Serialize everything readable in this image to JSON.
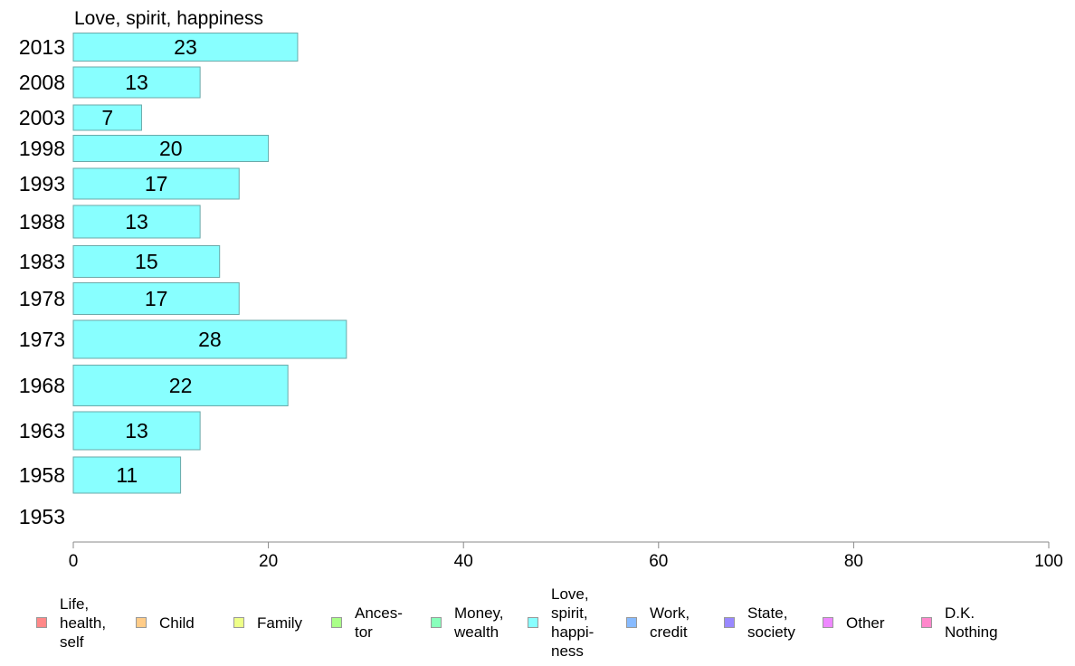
{
  "chart_data": {
    "type": "bar",
    "orientation": "horizontal",
    "title": "Love, spirit, happiness",
    "categories": [
      "2013",
      "2008",
      "2003",
      "1998",
      "1993",
      "1988",
      "1983",
      "1978",
      "1973",
      "1968",
      "1963",
      "1958",
      "1953"
    ],
    "series": [
      {
        "name": "Love, spirit, happiness",
        "values": [
          23,
          13,
          7,
          20,
          17,
          13,
          15,
          17,
          28,
          22,
          13,
          11,
          null
        ],
        "data_labels": [
          "23",
          "13",
          "7",
          "20",
          "17",
          "13",
          "15",
          "17",
          "28",
          "22",
          "13",
          "11",
          ""
        ],
        "color": "#88ffff"
      }
    ],
    "xlim": [
      0,
      100
    ],
    "xticks": [
      "0",
      "20",
      "40",
      "60",
      "80",
      "100"
    ],
    "xlabel": "",
    "ylabel": "",
    "grid": false,
    "legend_position": "bottom",
    "legend": [
      {
        "label": "Life,\nhealth,\nself",
        "color": "#ff8888"
      },
      {
        "label": "Child",
        "color": "#ffcc88"
      },
      {
        "label": "Family",
        "color": "#eeff88"
      },
      {
        "label": "Ances-\ntor",
        "color": "#aaff88"
      },
      {
        "label": "Money,\nwealth",
        "color": "#88ffbb"
      },
      {
        "label": "Love,\nspirit,\nhappi-\nness",
        "color": "#88ffff"
      },
      {
        "label": "Work,\ncredit",
        "color": "#88bbff"
      },
      {
        "label": "State,\nsociety",
        "color": "#9988ff"
      },
      {
        "label": "Other",
        "color": "#ee88ff"
      },
      {
        "label": "D.K.\nNothing",
        "color": "#ff88cc"
      }
    ]
  }
}
